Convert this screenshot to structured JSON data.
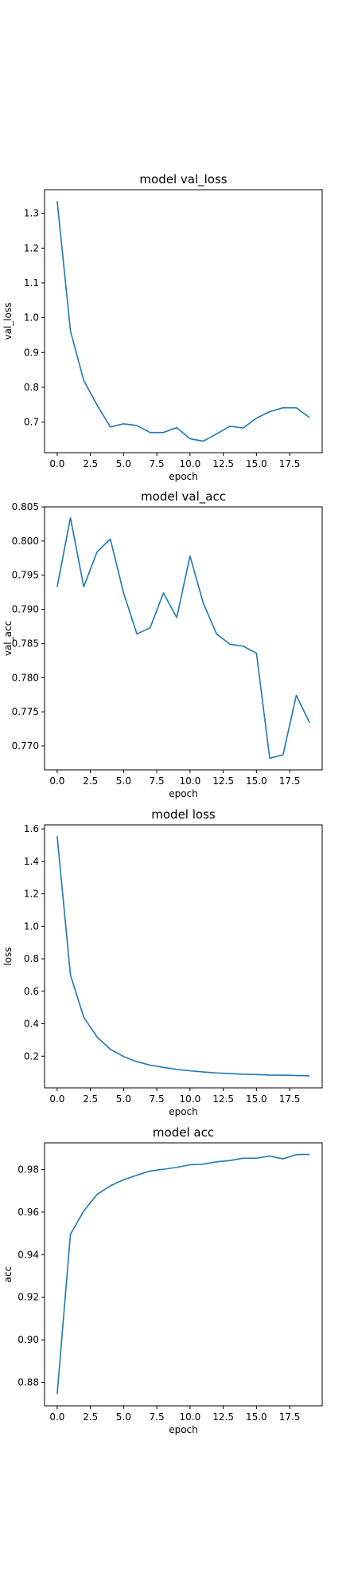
{
  "chart_data": [
    {
      "type": "line",
      "title": "model val_loss",
      "xlabel": "epoch",
      "ylabel": "val_loss",
      "xlim": [
        -0.95,
        19.95
      ],
      "ylim": [
        0.612,
        1.368
      ],
      "xticks": [
        "0.0",
        "2.5",
        "5.0",
        "7.5",
        "10.0",
        "12.5",
        "15.0",
        "17.5"
      ],
      "yticks": [
        "0.7",
        "0.8",
        "0.9",
        "1.0",
        "1.1",
        "1.2",
        "1.3"
      ],
      "x": [
        0,
        1,
        2,
        3,
        4,
        5,
        6,
        7,
        8,
        9,
        10,
        11,
        12,
        13,
        14,
        15,
        16,
        17,
        18,
        19
      ],
      "series": [
        {
          "color": "#1f77b4",
          "values": [
            1.335,
            0.962,
            0.82,
            0.749,
            0.686,
            0.695,
            0.69,
            0.67,
            0.67,
            0.684,
            0.652,
            0.645,
            0.666,
            0.688,
            0.683,
            0.711,
            0.73,
            0.741,
            0.741,
            0.713
          ]
        }
      ],
      "grid": false
    },
    {
      "type": "line",
      "title": "model val_acc",
      "xlabel": "epoch",
      "ylabel": "val_acc",
      "xlim": [
        -0.95,
        19.95
      ],
      "ylim": [
        0.7665,
        0.805
      ],
      "xticks": [
        "0.0",
        "2.5",
        "5.0",
        "7.5",
        "10.0",
        "12.5",
        "15.0",
        "17.5"
      ],
      "yticks": [
        "0.770",
        "0.775",
        "0.780",
        "0.785",
        "0.790",
        "0.795",
        "0.800",
        "0.805"
      ],
      "x": [
        0,
        1,
        2,
        3,
        4,
        5,
        6,
        7,
        8,
        9,
        10,
        11,
        12,
        13,
        14,
        15,
        16,
        17,
        18,
        19
      ],
      "series": [
        {
          "color": "#1f77b4",
          "values": [
            0.7933,
            0.8034,
            0.7933,
            0.7984,
            0.8003,
            0.7924,
            0.7864,
            0.7873,
            0.7924,
            0.7888,
            0.7978,
            0.7909,
            0.7864,
            0.7849,
            0.7846,
            0.7836,
            0.7682,
            0.7687,
            0.7774,
            0.7734
          ]
        }
      ],
      "grid": false
    },
    {
      "type": "line",
      "title": "model loss",
      "xlabel": "epoch",
      "ylabel": "loss",
      "xlim": [
        -0.95,
        19.95
      ],
      "ylim": [
        0.005,
        1.625
      ],
      "xticks": [
        "0.0",
        "2.5",
        "5.0",
        "7.5",
        "10.0",
        "12.5",
        "15.0",
        "17.5"
      ],
      "yticks": [
        "0.2",
        "0.4",
        "0.6",
        "0.8",
        "1.0",
        "1.2",
        "1.4",
        "1.6"
      ],
      "x": [
        0,
        1,
        2,
        3,
        4,
        5,
        6,
        7,
        8,
        9,
        10,
        11,
        12,
        13,
        14,
        15,
        16,
        17,
        18,
        19
      ],
      "series": [
        {
          "color": "#1f77b4",
          "values": [
            1.555,
            0.7,
            0.44,
            0.318,
            0.243,
            0.198,
            0.166,
            0.145,
            0.131,
            0.119,
            0.11,
            0.103,
            0.097,
            0.093,
            0.089,
            0.087,
            0.084,
            0.083,
            0.081,
            0.079
          ]
        }
      ],
      "grid": false
    },
    {
      "type": "line",
      "title": "model acc",
      "xlabel": "epoch",
      "ylabel": "acc",
      "xlim": [
        -0.95,
        19.95
      ],
      "ylim": [
        0.869,
        0.9925
      ],
      "xticks": [
        "0.0",
        "2.5",
        "5.0",
        "7.5",
        "10.0",
        "12.5",
        "15.0",
        "17.5"
      ],
      "yticks": [
        "0.88",
        "0.90",
        "0.92",
        "0.94",
        "0.96",
        "0.98"
      ],
      "x": [
        0,
        1,
        2,
        3,
        4,
        5,
        6,
        7,
        8,
        9,
        10,
        11,
        12,
        13,
        14,
        15,
        16,
        17,
        18,
        19
      ],
      "series": [
        {
          "color": "#1f77b4",
          "values": [
            0.8745,
            0.9496,
            0.9605,
            0.9683,
            0.9723,
            0.9752,
            0.9773,
            0.9793,
            0.9801,
            0.981,
            0.9822,
            0.9825,
            0.9836,
            0.9842,
            0.9853,
            0.9853,
            0.9863,
            0.985,
            0.987,
            0.9871
          ]
        }
      ],
      "grid": false
    }
  ]
}
